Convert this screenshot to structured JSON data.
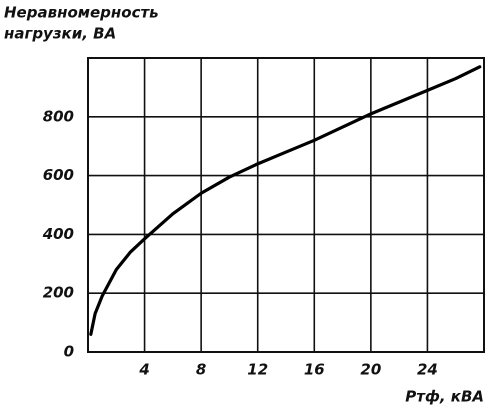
{
  "chart_data": {
    "type": "line",
    "y_label_lines": [
      "Неравномерность",
      "нагрузки, ВА"
    ],
    "x_label": "Pтф, кВА",
    "x": [
      0.2,
      0.5,
      1,
      2,
      3,
      4,
      6,
      8,
      10,
      12,
      14,
      16,
      18,
      20,
      22,
      24,
      26,
      27.7
    ],
    "values": [
      60,
      130,
      190,
      280,
      340,
      385,
      470,
      540,
      595,
      640,
      680,
      720,
      765,
      810,
      850,
      890,
      930,
      970
    ],
    "color": "#000000",
    "xlim": [
      0,
      28
    ],
    "xticks": [
      4,
      8,
      12,
      16,
      20,
      24
    ],
    "ylim": [
      0,
      1000
    ],
    "yticks": [
      0,
      200,
      400,
      600,
      800
    ],
    "grid": true
  }
}
